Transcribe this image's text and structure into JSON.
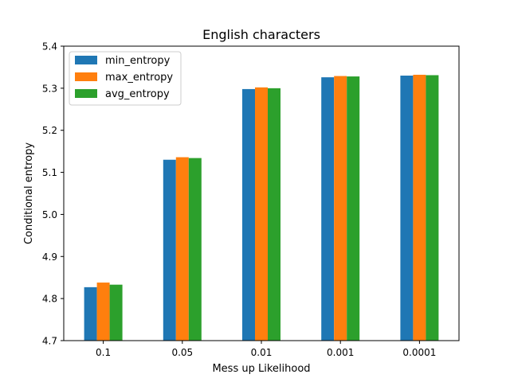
{
  "chart_data": {
    "type": "bar",
    "title": "English characters",
    "xlabel": "Mess up Likelihood",
    "ylabel": "Conditional entropy",
    "categories": [
      "0.1",
      "0.05",
      "0.01",
      "0.001",
      "0.0001"
    ],
    "series": [
      {
        "name": "min_entropy",
        "color": "#1f77b4",
        "values": [
          4.827,
          5.13,
          5.298,
          5.326,
          5.33
        ]
      },
      {
        "name": "max_entropy",
        "color": "#ff7f0e",
        "values": [
          4.838,
          5.136,
          5.302,
          5.329,
          5.332
        ]
      },
      {
        "name": "avg_entropy",
        "color": "#2ca02c",
        "values": [
          4.833,
          5.134,
          5.3,
          5.328,
          5.331
        ]
      }
    ],
    "ylim": [
      4.7,
      5.4
    ],
    "yticks": [
      "4.7",
      "4.8",
      "4.9",
      "5.0",
      "5.1",
      "5.2",
      "5.3",
      "5.4"
    ],
    "grid": false,
    "legend_position": "top-left"
  }
}
